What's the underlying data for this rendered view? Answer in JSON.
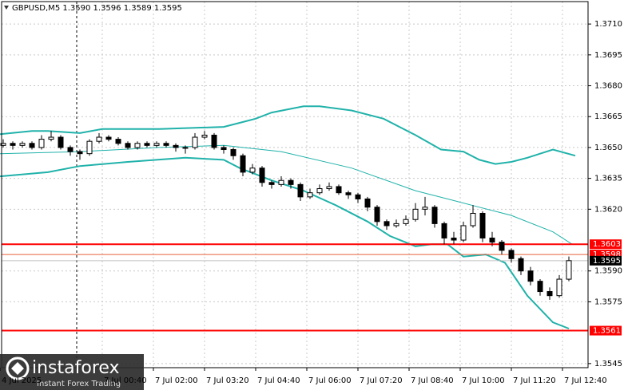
{
  "chart_data": {
    "type": "candlestick",
    "title": "GBPUSD,M5  1.3590 1.3596 1.3589 1.3595",
    "xlim": [
      -117.5,
      800
    ],
    "ylim": [
      1.3543,
      1.37209
    ],
    "grid": true,
    "separator_x": 0,
    "xticks": [
      {
        "value": -120,
        "label": "4 Jul 2025"
      },
      {
        "value": 40,
        "label": "7 Jul 00:40"
      },
      {
        "value": 120,
        "label": "7 Jul 02:00"
      },
      {
        "value": 200,
        "label": "7 Jul 03:20"
      },
      {
        "value": 280,
        "label": "7 Jul 04:40"
      },
      {
        "value": 360,
        "label": "7 Jul 06:00"
      },
      {
        "value": 440,
        "label": "7 Jul 07:20"
      },
      {
        "value": 520,
        "label": "7 Jul 08:40"
      },
      {
        "value": 600,
        "label": "7 Jul 10:00"
      },
      {
        "value": 680,
        "label": "7 Jul 11:20"
      },
      {
        "value": 760,
        "label": "7 Jul 12:40"
      }
    ],
    "yticks": [
      {
        "value": 1.371,
        "label": "1.3710"
      },
      1.3695,
      {
        "value": 1.368,
        "label": "1.3680"
      },
      1.3665,
      {
        "value": 1.365,
        "label": "1.3650"
      },
      1.3635,
      {
        "value": 1.362,
        "label": "1.3620"
      },
      {
        "value": 1.359,
        "label": "1.3590"
      },
      1.3575,
      1.3545
    ],
    "x": [
      -115,
      -100,
      -85,
      -70,
      -55,
      -40,
      -25,
      -10,
      5,
      20,
      35,
      50,
      65,
      80,
      95,
      110,
      125,
      140,
      155,
      170,
      185,
      200,
      215,
      230,
      245,
      260,
      275,
      290,
      305,
      320,
      335,
      350,
      365,
      380,
      395,
      410,
      425,
      440,
      455,
      470,
      485,
      500,
      515,
      530,
      545,
      560,
      575,
      590,
      605,
      620,
      635,
      650,
      665,
      680,
      695,
      710,
      725,
      740,
      755,
      770
    ],
    "open": [
      1.3651,
      1.3652,
      1.3651,
      1.3652,
      1.365,
      1.3654,
      1.3655,
      1.365,
      1.3648,
      1.3647,
      1.3653,
      1.3655,
      1.3654,
      1.3652,
      1.365,
      1.3652,
      1.3651,
      1.3652,
      1.3651,
      1.365,
      1.365,
      1.3655,
      1.3656,
      1.365,
      1.3649,
      1.3646,
      1.3638,
      1.364,
      1.3633,
      1.3632,
      1.3634,
      1.3632,
      1.3626,
      1.3628,
      1.363,
      1.3631,
      1.3628,
      1.3627,
      1.3625,
      1.3621,
      1.3614,
      1.3612,
      1.3613,
      1.3615,
      1.362,
      1.3621,
      1.3613,
      1.3606,
      1.3605,
      1.3612,
      1.3618,
      1.3606,
      1.3604,
      1.36,
      1.3596,
      1.359,
      1.3585,
      1.358,
      1.3578,
      1.3586
    ],
    "high": [
      1.3654,
      1.3653,
      1.3653,
      1.3653,
      1.3656,
      1.3658,
      1.3656,
      1.3651,
      1.3649,
      1.3654,
      1.3657,
      1.3656,
      1.3655,
      1.3653,
      1.3653,
      1.3653,
      1.3653,
      1.3653,
      1.3652,
      1.3651,
      1.3657,
      1.3658,
      1.3657,
      1.3651,
      1.365,
      1.3647,
      1.3642,
      1.3641,
      1.3634,
      1.3636,
      1.3635,
      1.3633,
      1.363,
      1.3632,
      1.3633,
      1.3632,
      1.3629,
      1.3628,
      1.3626,
      1.3622,
      1.3615,
      1.3615,
      1.3617,
      1.3623,
      1.3626,
      1.3622,
      1.3614,
      1.3609,
      1.3614,
      1.3622,
      1.3619,
      1.3609,
      1.3605,
      1.3601,
      1.3597,
      1.3592,
      1.3586,
      1.3582,
      1.3588,
      1.3597
    ],
    "low": [
      1.365,
      1.3649,
      1.365,
      1.3649,
      1.3649,
      1.3653,
      1.3649,
      1.3646,
      1.3644,
      1.3646,
      1.3652,
      1.3653,
      1.3651,
      1.3649,
      1.3649,
      1.365,
      1.365,
      1.365,
      1.3648,
      1.3647,
      1.3649,
      1.3654,
      1.3649,
      1.3647,
      1.3644,
      1.3636,
      1.3637,
      1.3631,
      1.363,
      1.3631,
      1.363,
      1.3624,
      1.3625,
      1.3627,
      1.3629,
      1.3627,
      1.3625,
      1.3623,
      1.3619,
      1.3612,
      1.361,
      1.3611,
      1.3612,
      1.3614,
      1.3617,
      1.3611,
      1.3603,
      1.3603,
      1.3604,
      1.3611,
      1.3604,
      1.3602,
      1.3598,
      1.3594,
      1.3588,
      1.3583,
      1.3578,
      1.3576,
      1.3577,
      1.3585
    ],
    "close": [
      1.3652,
      1.3651,
      1.3652,
      1.365,
      1.3654,
      1.3655,
      1.365,
      1.3648,
      1.3647,
      1.3653,
      1.3655,
      1.3654,
      1.3652,
      1.365,
      1.3652,
      1.3651,
      1.3652,
      1.3651,
      1.365,
      1.365,
      1.3655,
      1.3656,
      1.365,
      1.3649,
      1.3646,
      1.3638,
      1.364,
      1.3633,
      1.3632,
      1.3634,
      1.3632,
      1.3626,
      1.3628,
      1.363,
      1.3631,
      1.3628,
      1.3627,
      1.3625,
      1.3621,
      1.3614,
      1.3612,
      1.3613,
      1.3615,
      1.362,
      1.3621,
      1.3613,
      1.3606,
      1.3605,
      1.3612,
      1.3618,
      1.3606,
      1.3604,
      1.36,
      1.3596,
      1.359,
      1.3585,
      1.358,
      1.3578,
      1.3586,
      1.3595
    ],
    "bands": [
      {
        "color": "#20b2aa",
        "width": 2,
        "x": [
          -120,
          -70,
          -45,
          5,
          40,
          130,
          230,
          255,
          280,
          305,
          355,
          380,
          430,
          480,
          530,
          570,
          605,
          630,
          655,
          680,
          705,
          745,
          780
        ],
        "values": [
          1.36565,
          1.3658,
          1.3658,
          1.3657,
          1.3659,
          1.3659,
          1.366,
          1.3662,
          1.3664,
          1.3667,
          1.367,
          1.367,
          1.3668,
          1.3664,
          1.3656,
          1.3649,
          1.3648,
          1.3644,
          1.3642,
          1.3643,
          1.3645,
          1.3649,
          1.3646
        ]
      },
      {
        "color": "#20b2aa",
        "width": 1,
        "x": [
          -120,
          5,
          130,
          230,
          320,
          430,
          530,
          580,
          630,
          680,
          745,
          775
        ],
        "values": [
          1.3647,
          1.3648,
          1.365,
          1.3651,
          1.3648,
          1.364,
          1.3629,
          1.3625,
          1.3621,
          1.3617,
          1.3609,
          1.3603
        ]
      },
      {
        "color": "#20b2aa",
        "width": 2,
        "x": [
          -120,
          -45,
          5,
          80,
          170,
          230,
          255,
          305,
          355,
          405,
          455,
          490,
          530,
          555,
          580,
          605,
          640,
          670,
          705,
          745,
          770
        ],
        "values": [
          1.3636,
          1.3638,
          1.3641,
          1.3643,
          1.3645,
          1.3644,
          1.364,
          1.3634,
          1.3629,
          1.3622,
          1.3614,
          1.3607,
          1.3602,
          1.3603,
          1.3603,
          1.3597,
          1.3598,
          1.3594,
          1.3578,
          1.3565,
          1.3562
        ]
      }
    ],
    "levels": [
      {
        "value": 1.3603,
        "color": "#ff0000",
        "width": 2,
        "label_bg": "#ff0000",
        "label_color": "#ffffff"
      },
      {
        "value": 1.3598,
        "color": "#e8603c",
        "width": 1,
        "label_bg": "#ff0000",
        "label_color": "#ffffff"
      },
      {
        "value": 1.3595,
        "color": "#c0c0c0",
        "width": 1,
        "label_bg": "#000000",
        "label_color": "#ffffff"
      },
      {
        "value": 1.3561,
        "color": "#ff0000",
        "width": 2,
        "label_bg": "#ff0000",
        "label_color": "#ffffff"
      }
    ]
  },
  "logo": {
    "name": "instaforex",
    "tagline": "Instant Forex Trading"
  }
}
